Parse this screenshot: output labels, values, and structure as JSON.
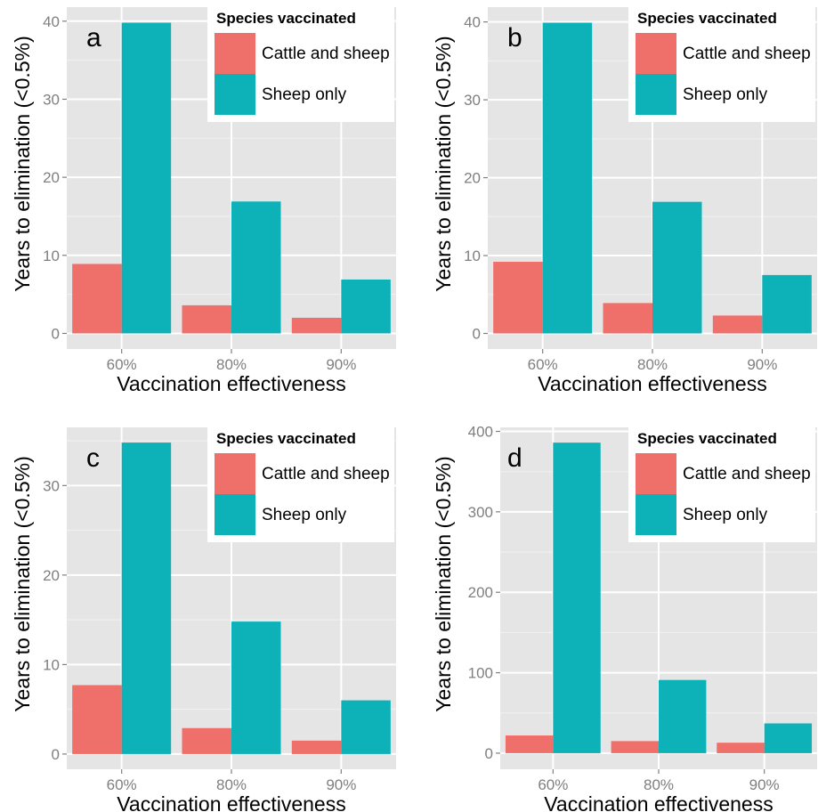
{
  "colors": {
    "panel_background": "#e5e5e5",
    "grid_major": "#ffffff",
    "grid_minor": "#f2f2f2",
    "tick_label": "#7f7f7f",
    "legend_background": "#ffffff"
  },
  "chart_data": [
    {
      "type": "bar",
      "panel_label": "a",
      "categories": [
        "60%",
        "80%",
        "90%"
      ],
      "series": [
        {
          "name": "Cattle and sheep",
          "color": "#ef6f6a",
          "values": [
            8.9,
            3.6,
            2.0
          ]
        },
        {
          "name": "Sheep only",
          "color": "#0db1b8",
          "values": [
            39.8,
            16.9,
            6.9
          ]
        }
      ],
      "xlabel": "Vaccination effectiveness",
      "ylabel": "Years to elimination (<0.5%)",
      "yticks": [
        0,
        10,
        20,
        30,
        40
      ],
      "ylim": [
        -2.0,
        41.8
      ],
      "legend": {
        "title": "Species vaccinated",
        "position": "top-right"
      },
      "grid": true
    },
    {
      "type": "bar",
      "panel_label": "b",
      "categories": [
        "60%",
        "80%",
        "90%"
      ],
      "series": [
        {
          "name": "Cattle and sheep",
          "color": "#ef6f6a",
          "values": [
            9.2,
            3.9,
            2.3
          ]
        },
        {
          "name": "Sheep only",
          "color": "#0db1b8",
          "values": [
            39.9,
            16.9,
            7.5
          ]
        }
      ],
      "xlabel": "Vaccination effectiveness",
      "ylabel": "Years to elimination (<0.5%)",
      "yticks": [
        0,
        10,
        20,
        30,
        40
      ],
      "ylim": [
        -2.0,
        41.9
      ],
      "legend": {
        "title": "Species vaccinated",
        "position": "top-right"
      },
      "grid": true
    },
    {
      "type": "bar",
      "panel_label": "c",
      "categories": [
        "60%",
        "80%",
        "90%"
      ],
      "series": [
        {
          "name": "Cattle and sheep",
          "color": "#ef6f6a",
          "values": [
            7.7,
            2.9,
            1.5
          ]
        },
        {
          "name": "Sheep only",
          "color": "#0db1b8",
          "values": [
            34.8,
            14.8,
            6.0
          ]
        }
      ],
      "xlabel": "Vaccination effectiveness",
      "ylabel": "Years to elimination (<0.5%)",
      "yticks": [
        0,
        10,
        20,
        30
      ],
      "ylim": [
        -1.7,
        36.5
      ],
      "legend": {
        "title": "Species vaccinated",
        "position": "top-right"
      },
      "grid": true
    },
    {
      "type": "bar",
      "panel_label": "d",
      "categories": [
        "60%",
        "80%",
        "90%"
      ],
      "series": [
        {
          "name": "Cattle and sheep",
          "color": "#ef6f6a",
          "values": [
            22,
            15,
            13
          ]
        },
        {
          "name": "Sheep only",
          "color": "#0db1b8",
          "values": [
            386,
            91,
            37
          ]
        }
      ],
      "xlabel": "Vaccination effectiveness",
      "ylabel": "Years to elimination (<0.5%)",
      "yticks": [
        0,
        100,
        200,
        300,
        400
      ],
      "ylim": [
        -20,
        405
      ],
      "legend": {
        "title": "Species vaccinated",
        "position": "top-right"
      },
      "grid": true
    }
  ]
}
